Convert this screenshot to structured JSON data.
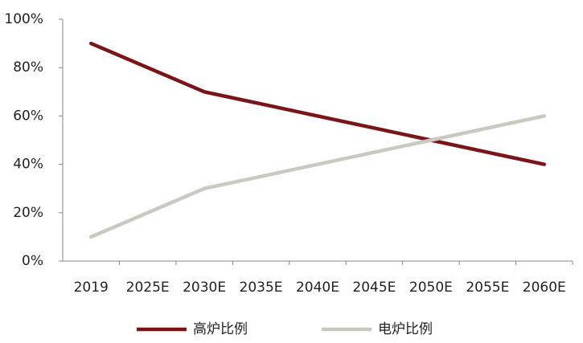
{
  "chart_data": {
    "type": "line",
    "categories": [
      "2019",
      "2025E",
      "2030E",
      "2035E",
      "2040E",
      "2045E",
      "2050E",
      "2055E",
      "2060E"
    ],
    "series": [
      {
        "name": "高炉比例",
        "color": "#7b1416",
        "values": [
          90,
          80,
          70,
          65,
          60,
          55,
          50,
          45,
          40
        ]
      },
      {
        "name": "电炉比例",
        "color": "#c9c9bf",
        "values": [
          10,
          20,
          30,
          35,
          40,
          45,
          50,
          55,
          60
        ]
      }
    ],
    "ylim": [
      0,
      100
    ],
    "yticks": [
      {
        "value": 0,
        "label": "0%"
      },
      {
        "value": 20,
        "label": "20%"
      },
      {
        "value": 40,
        "label": "40%"
      },
      {
        "value": 60,
        "label": "60%"
      },
      {
        "value": 80,
        "label": "80%"
      },
      {
        "value": 100,
        "label": "100%"
      }
    ],
    "grid": false,
    "legend": "bottom"
  }
}
